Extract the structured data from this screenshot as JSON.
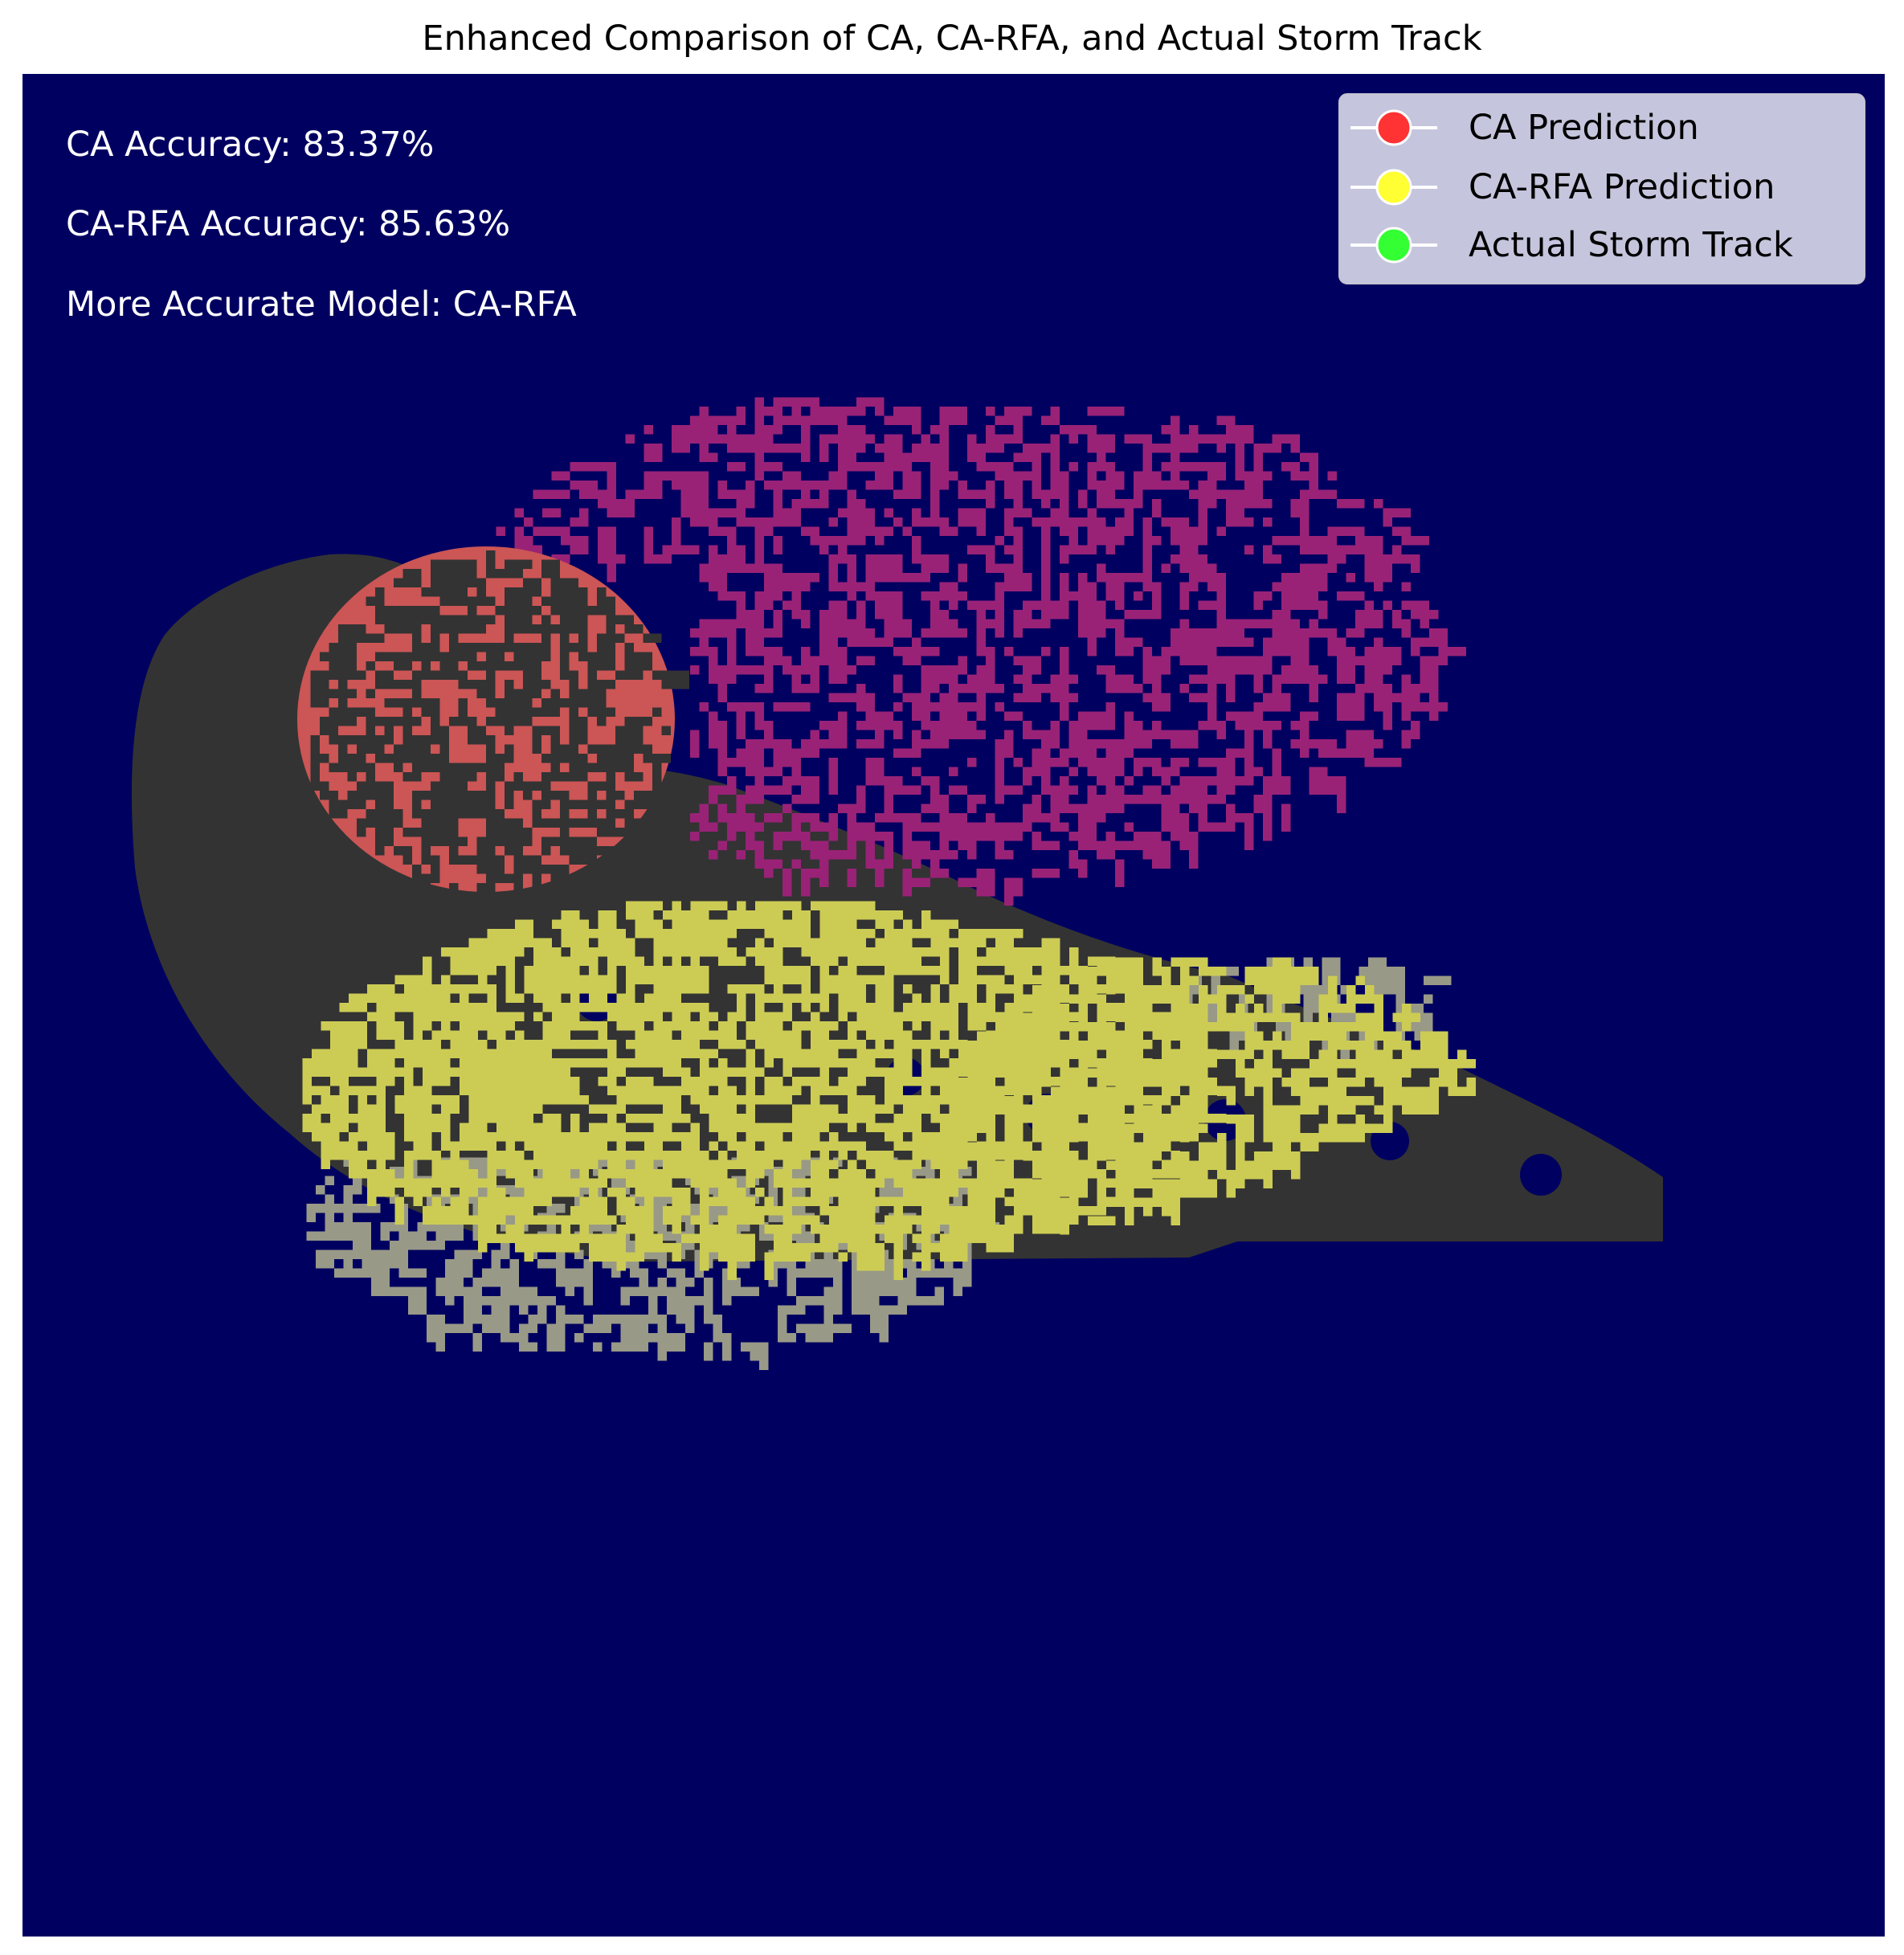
{
  "chart_data": {
    "type": "heatmap",
    "title": "Enhanced Comparison of CA, CA-RFA, and Actual Storm Track",
    "xlabel": "",
    "ylabel": "",
    "axes_visible": false,
    "grid": false,
    "background_color": "#000060",
    "annotations": [
      "CA Accuracy: 83.37%",
      "CA-RFA Accuracy: 85.63%",
      "More Accurate Model: CA-RFA"
    ],
    "metrics": {
      "ca_accuracy_percent": 83.37,
      "ca_rfa_accuracy_percent": 85.63,
      "more_accurate_model": "CA-RFA"
    },
    "legend": {
      "placement": "top-right",
      "entries": [
        {
          "label": "CA Prediction",
          "color": "#ff3333"
        },
        {
          "label": "CA-RFA Prediction",
          "color": "#ffff33"
        },
        {
          "label": "Actual Storm Track",
          "color": "#33ff33"
        }
      ]
    },
    "rendered_colors": {
      "actual_track_overlap": "#333333",
      "ca_on_track": "#cc5555",
      "ca_rfa_on_track": "#cccc55",
      "ca_off_track": "#992277",
      "ca_rfa_off_track": "#999988"
    }
  }
}
